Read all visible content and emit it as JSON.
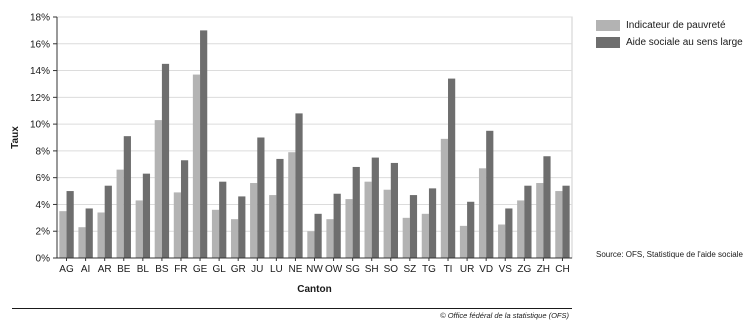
{
  "chart_data": {
    "type": "bar",
    "xlabel": "Canton",
    "ylabel": "Taux",
    "ylim": [
      0,
      18
    ],
    "y_tick_step": 2,
    "y_tick_suffix": "%",
    "grid": true,
    "legend_position": "right",
    "categories": [
      "AG",
      "AI",
      "AR",
      "BE",
      "BL",
      "BS",
      "FR",
      "GE",
      "GL",
      "GR",
      "JU",
      "LU",
      "NE",
      "NW",
      "OW",
      "SG",
      "SH",
      "SO",
      "SZ",
      "TG",
      "TI",
      "UR",
      "VD",
      "VS",
      "ZG",
      "ZH",
      "CH"
    ],
    "series": [
      {
        "name": "Indicateur de pauvreté",
        "color": "#b3b3b3",
        "values": [
          3.5,
          2.3,
          3.4,
          6.6,
          4.3,
          10.3,
          4.9,
          13.7,
          3.6,
          2.9,
          5.6,
          4.7,
          7.9,
          2.0,
          2.9,
          4.4,
          5.7,
          5.1,
          3.0,
          3.3,
          8.9,
          2.4,
          6.7,
          2.5,
          4.3,
          5.6,
          5.0
        ]
      },
      {
        "name": "Aide sociale au sens large",
        "color": "#6e6e6e",
        "values": [
          5.0,
          3.7,
          5.4,
          9.1,
          6.3,
          14.5,
          7.3,
          17.0,
          5.7,
          4.6,
          9.0,
          7.4,
          10.8,
          3.3,
          4.8,
          6.8,
          7.5,
          7.1,
          4.7,
          5.2,
          13.4,
          4.2,
          9.5,
          3.7,
          5.4,
          7.6,
          5.4
        ]
      }
    ]
  },
  "source_note": "Source: OFS, Statistique de l'aide sociale",
  "footer_credit": "© Office fédéral de la statistique (OFS)"
}
